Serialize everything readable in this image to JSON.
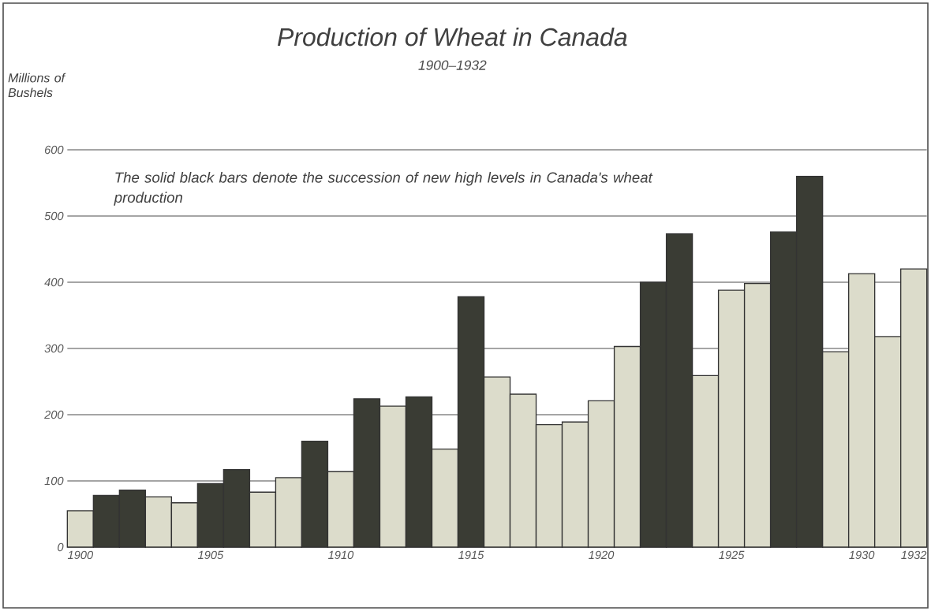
{
  "chart_data": {
    "type": "bar",
    "title": "Production of Wheat in Canada",
    "subtitle": "1900–1932",
    "ylabel": "Millions of Bushels",
    "annotations": [
      "The solid black bars denote the succession of new high levels in Canada's wheat production"
    ],
    "categories": [
      "1900",
      null,
      null,
      null,
      null,
      "1905",
      null,
      null,
      null,
      null,
      "1910",
      null,
      null,
      null,
      null,
      "1915",
      null,
      null,
      null,
      null,
      "1920",
      null,
      null,
      null,
      null,
      "1925",
      null,
      null,
      null,
      null,
      "1930",
      null,
      "1932"
    ],
    "values": [
      55,
      78,
      86,
      76,
      67,
      96,
      117,
      83,
      105,
      160,
      114,
      224,
      213,
      227,
      148,
      378,
      257,
      231,
      185,
      189,
      221,
      303,
      400,
      473,
      259,
      388,
      398,
      476,
      560,
      295,
      413,
      318,
      420
    ],
    "colors": [
      "#dcdccb",
      "#3a3c34",
      "#3a3c34",
      "#dcdccb",
      "#dcdccb",
      "#3a3c34",
      "#3a3c34",
      "#dcdccb",
      "#dcdccb",
      "#3a3c34",
      "#dcdccb",
      "#3a3c34",
      "#dcdccb",
      "#3a3c34",
      "#dcdccb",
      "#3a3c34",
      "#dcdccb",
      "#dcdccb",
      "#dcdccb",
      "#dcdccb",
      "#dcdccb",
      "#dcdccb",
      "#3a3c34",
      "#3a3c34",
      "#dcdccb",
      "#dcdccb",
      "#dcdccb",
      "#3a3c34",
      "#3a3c34",
      "#dcdccb",
      "#dcdccb",
      "#dcdccb",
      "#dcdccb"
    ],
    "ylim": [
      0,
      600
    ],
    "yticks": [
      0,
      100,
      200,
      300,
      400,
      500,
      600
    ],
    "grid": "y"
  }
}
